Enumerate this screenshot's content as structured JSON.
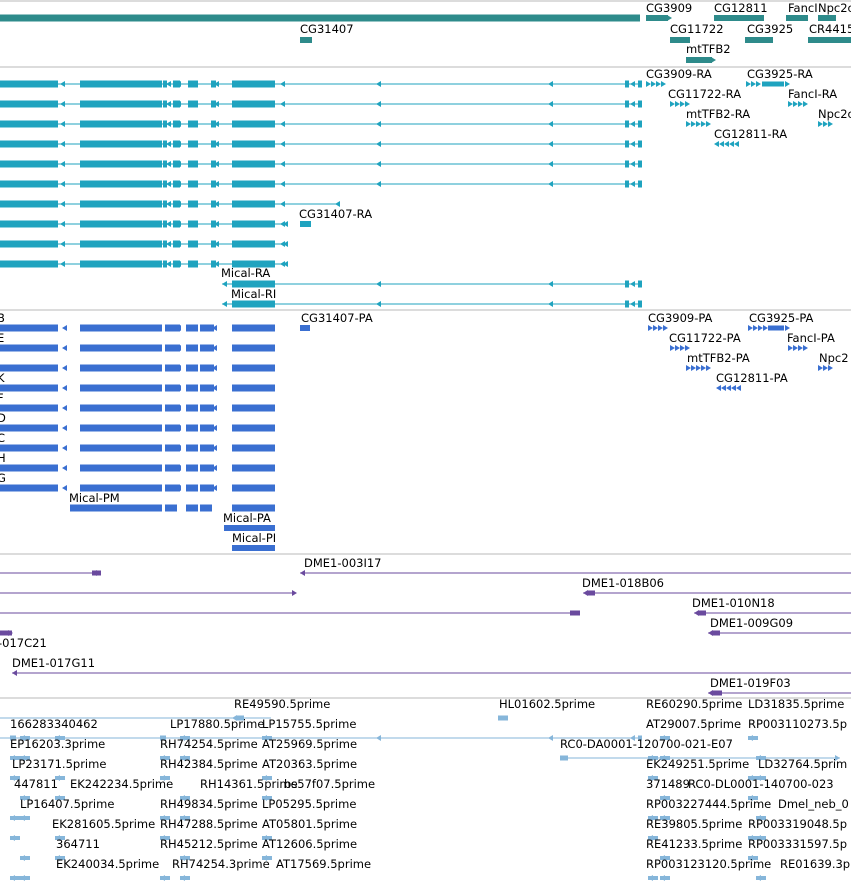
{
  "colors": {
    "background": "#ffffff",
    "divider": "#b8b8b8",
    "gene": "#2e8b8b",
    "transcript": "#1fa3bf",
    "protein": "#3a6fd1",
    "clone": "#6a4a9e",
    "est": "#86b6da",
    "label": "#000000"
  },
  "tracks": [
    {
      "id": "genes",
      "labels": [
        "CG3909",
        "CG12811",
        "FancI",
        "Npc2c",
        "CG31407",
        "CG11722",
        "CG3925",
        "CR4415",
        "mtTFB2"
      ]
    },
    {
      "id": "transcripts",
      "labels": [
        "CG3909-RA",
        "CG3925-RA",
        "CG11722-RA",
        "FancI-RA",
        "mtTFB2-RA",
        "Npc2c",
        "CG12811-RA",
        "CG31407-RA",
        "Mical-RA",
        "Mical-RI"
      ]
    },
    {
      "id": "proteins",
      "labels": [
        "B",
        "E",
        "K",
        "F",
        "D",
        "C",
        "H",
        "G",
        "CG31407-PA",
        "CG3909-PA",
        "CG3925-PA",
        "CG11722-PA",
        "FancI-PA",
        "mtTFB2-PA",
        "Npc2",
        "CG12811-PA",
        "Mical-PM",
        "Mical-PA",
        "Mical-PI"
      ]
    },
    {
      "id": "clones",
      "labels": [
        "DME1-003I17",
        "DME1-018B06",
        "DME1-010N18",
        "DME1-009G09",
        "-017C21",
        "DME1-017G11",
        "DME1-019F03"
      ]
    },
    {
      "id": "ests",
      "labels": [
        "RE49590.5prime",
        "HL01602.5prime",
        "RE60290.5prime",
        "LD31835.5prime",
        "166283340462",
        "LP17880.5prime",
        "LP15755.5prime",
        "AT29007.5prime",
        "RP003110273.5p",
        "EP16203.3prime",
        "RH74254.5prime",
        "AT25969.5prime",
        "RC0-DA0001-120700-021-E07",
        "LP23171.5prime",
        "RH42384.5prime",
        "AT20363.5prime",
        "EK249251.5prime",
        "LD32764.5prim",
        "447811",
        "EK242234.5prime",
        "RH14361.5prime",
        "bs57f07.5prime",
        "371489",
        "RC0-DL0001-140700-023",
        "LP16407.5prime",
        "RH49834.5prime",
        "LP05295.5prime",
        "RP003227444.5prime",
        "Dmel_neb_0",
        "EK281605.5prime",
        "RH47288.5prime",
        "AT05801.5prime",
        "RE39805.5prime",
        "RP003319048.5p",
        "364711",
        "RH45212.5prime",
        "AT12606.5prime",
        "RE41233.5prime",
        "RP003331597.5p",
        "EK240034.5prime",
        "RH74254.3prime",
        "AT17569.5prime",
        "RP003123120.5prime",
        "RE01639.3p"
      ]
    }
  ]
}
